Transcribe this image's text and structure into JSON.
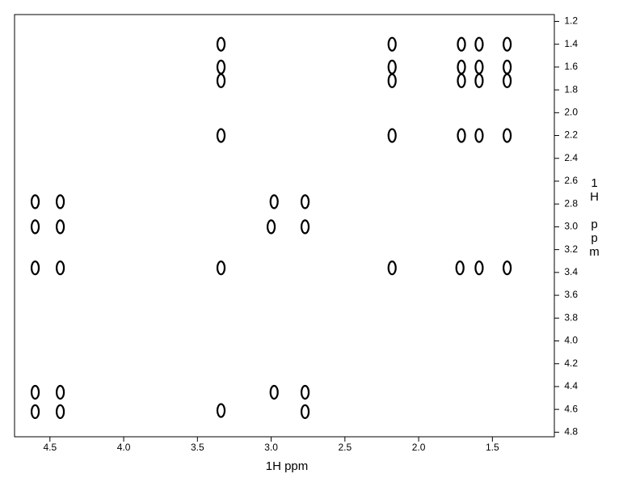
{
  "chart_data": {
    "type": "scatter",
    "x_label": "1H ppm",
    "y_label": "1H ppm",
    "x": [
      3.34,
      3.34,
      3.34,
      3.34,
      3.34,
      3.34,
      2.18,
      2.18,
      2.18,
      2.18,
      2.18,
      1.71,
      1.71,
      1.71,
      1.71,
      1.72,
      1.59,
      1.59,
      1.59,
      1.59,
      1.59,
      1.4,
      1.4,
      1.4,
      1.4,
      1.4,
      4.6,
      4.6,
      4.6,
      4.6,
      4.6,
      4.43,
      4.43,
      4.43,
      4.43,
      4.43,
      2.98,
      3.0,
      2.98,
      2.77,
      2.77,
      2.77,
      2.77
    ],
    "values": [
      1.4,
      1.6,
      1.72,
      2.2,
      3.36,
      4.61,
      1.4,
      1.6,
      1.72,
      2.2,
      3.36,
      1.4,
      1.6,
      1.72,
      2.2,
      3.36,
      1.4,
      1.6,
      1.72,
      2.2,
      3.36,
      1.4,
      1.6,
      1.72,
      2.2,
      3.36,
      2.78,
      3.0,
      3.36,
      4.45,
      4.62,
      2.78,
      3.0,
      3.36,
      4.45,
      4.62,
      2.78,
      3.0,
      4.45,
      2.78,
      3.0,
      4.45,
      4.62
    ],
    "color": "#000000",
    "xlim": [
      4.74,
      1.08
    ],
    "xticks": [
      4.5,
      {
        "value": 4,
        "label": "4.0"
      },
      3.5,
      {
        "value": 3,
        "label": "3.0"
      },
      2.5,
      {
        "value": 2,
        "label": "2.0"
      },
      1.5
    ],
    "ylim": [
      1.14,
      4.84
    ],
    "yticks": [
      1.2,
      1.4,
      1.6,
      1.8,
      {
        "value": 2,
        "label": "2.0"
      },
      2.2,
      2.4,
      2.6,
      2.8,
      {
        "value": 3,
        "label": "3.0"
      },
      3.2,
      3.4,
      3.6,
      3.8,
      {
        "value": 4,
        "label": "4.0"
      },
      4.2,
      4.4,
      4.6,
      4.8
    ]
  }
}
